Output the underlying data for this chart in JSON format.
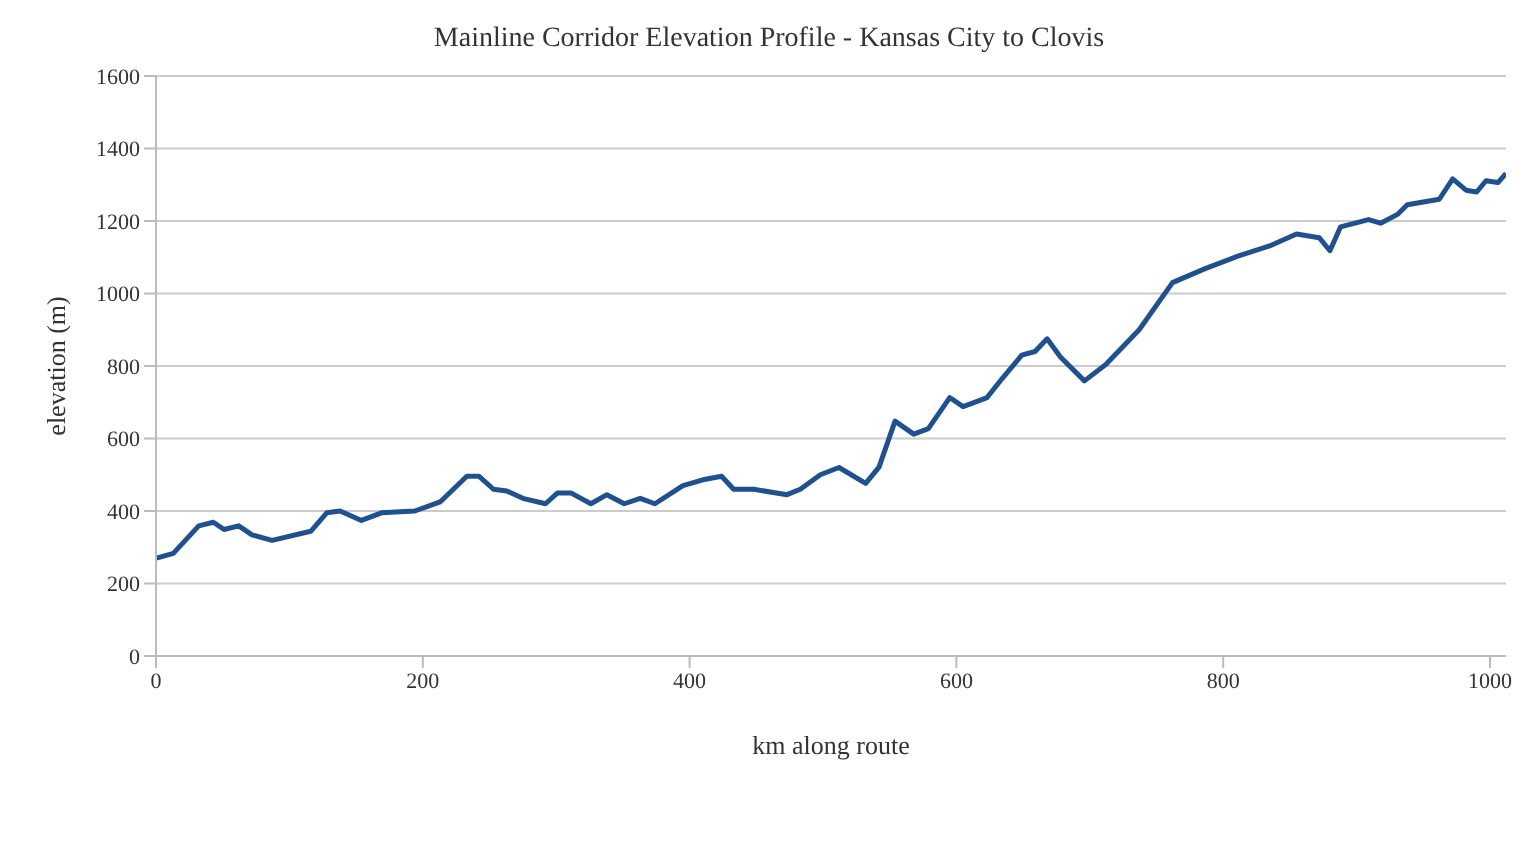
{
  "chart_data": {
    "type": "line",
    "title": "Mainline Corridor Elevation Profile - Kansas City to Clovis",
    "xlabel": "km along route",
    "ylabel": "elevation (m)",
    "x": [
      0,
      3,
      13,
      32,
      43,
      51,
      62,
      72,
      87,
      116,
      128,
      138,
      154,
      169,
      194,
      213,
      233,
      242,
      253,
      263,
      275,
      292,
      301,
      311,
      326,
      338,
      351,
      363,
      374,
      395,
      410,
      424,
      433,
      448,
      473,
      483,
      498,
      512,
      532,
      542,
      554,
      568,
      579,
      595,
      605,
      623,
      634,
      649,
      659,
      668,
      678,
      696,
      712,
      737,
      762,
      786,
      811,
      836,
      855,
      872,
      880,
      888,
      909,
      918,
      931,
      938,
      962,
      972,
      982,
      990,
      997,
      1006,
      1012
    ],
    "series": [
      {
        "color": "#1f5190",
        "values": [
          270,
          273,
          283,
          359,
          369,
          349,
          359,
          334,
          319,
          344,
          395,
          400,
          374,
          395,
          400,
          425,
          496,
          496,
          460,
          455,
          435,
          420,
          450,
          450,
          420,
          445,
          420,
          435,
          420,
          470,
          486,
          496,
          460,
          460,
          445,
          460,
          500,
          520,
          476,
          521,
          648,
          612,
          627,
          713,
          688,
          713,
          764,
          830,
          840,
          875,
          825,
          759,
          804,
          900,
          1030,
          1068,
          1103,
          1133,
          1164,
          1154,
          1118,
          1184,
          1204,
          1194,
          1219,
          1245,
          1260,
          1316,
          1285,
          1280,
          1311,
          1306,
          1331
        ]
      }
    ],
    "xlim": [
      0,
      1012
    ],
    "xticks": [
      0,
      200,
      400,
      600,
      800,
      1000
    ],
    "ylim": [
      0,
      1600
    ],
    "yticks": [
      0,
      200,
      400,
      600,
      800,
      1000,
      1200,
      1400,
      1600
    ],
    "grid": "y",
    "marker": "none",
    "line_style": "solid"
  }
}
